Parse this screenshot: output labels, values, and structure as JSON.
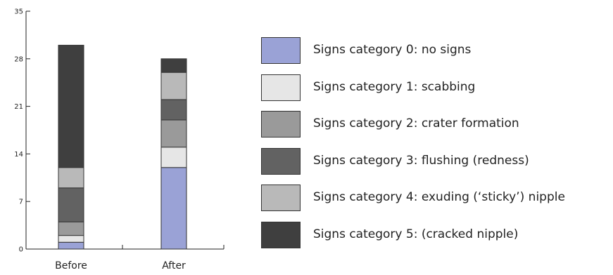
{
  "chart_data": {
    "type": "bar",
    "stacked": true,
    "categories": [
      "Before",
      "After"
    ],
    "ylim": [
      0,
      35
    ],
    "yticks": [
      "0",
      "7",
      "14",
      "21",
      "28",
      "35"
    ],
    "series": [
      {
        "name": "Signs category 0: no signs",
        "color": "#9aa2d6",
        "values": [
          1,
          12
        ]
      },
      {
        "name": "Signs category 1: scabbing",
        "color": "#e6e6e6",
        "values": [
          1,
          3
        ]
      },
      {
        "name": "Signs category 2: crater formation",
        "color": "#9a9a9a",
        "values": [
          2,
          4
        ]
      },
      {
        "name": "Signs category 3: flushing (redness)",
        "color": "#626262",
        "values": [
          5,
          3
        ]
      },
      {
        "name": "Signs category 4: exuding (‘sticky’) nipple",
        "color": "#b9b9b9",
        "values": [
          3,
          4
        ]
      },
      {
        "name": "Signs category 5: (cracked nipple)",
        "color": "#3f3f3f",
        "values": [
          18,
          2
        ]
      }
    ],
    "legend_position": "right"
  }
}
